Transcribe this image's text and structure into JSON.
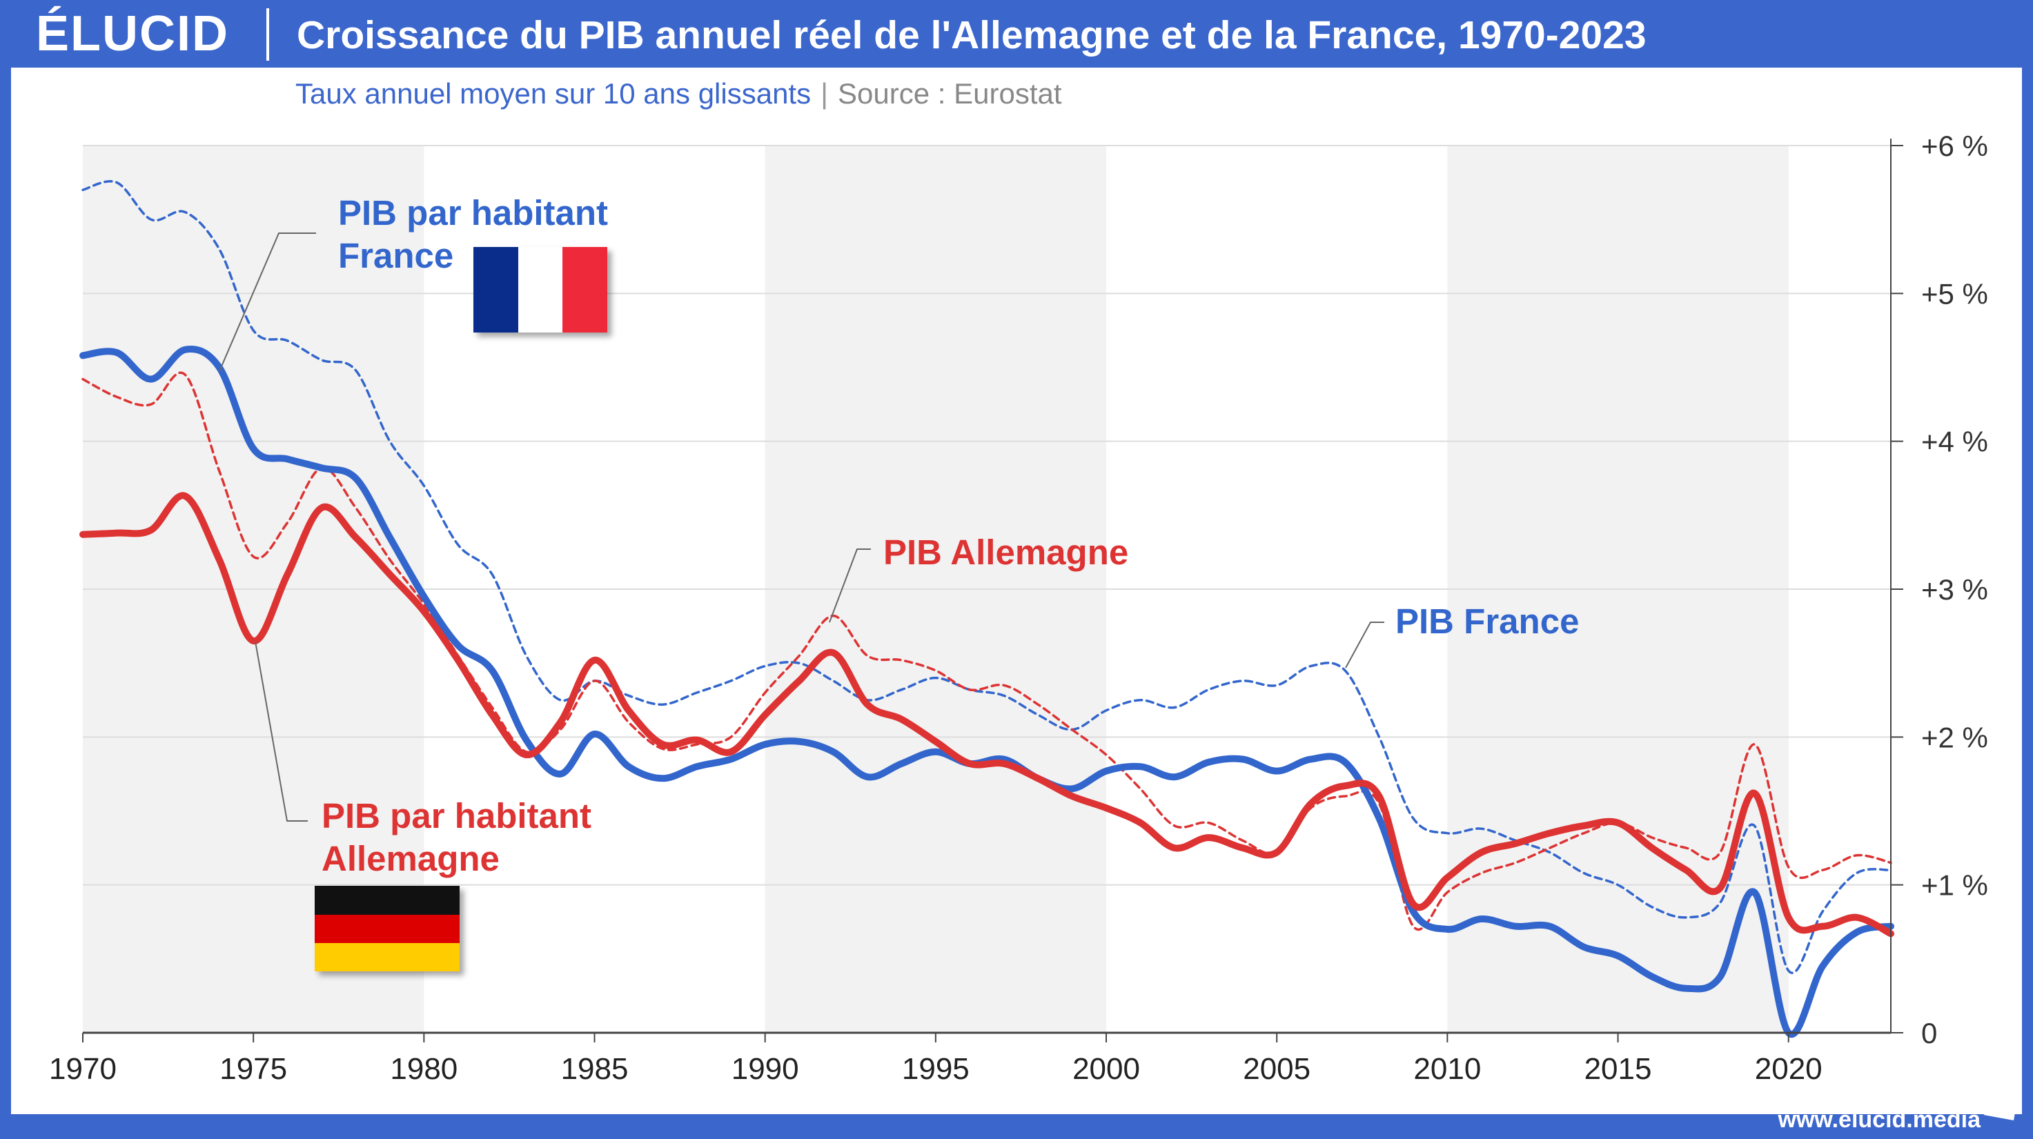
{
  "header": {
    "logo": "ÉLUCID",
    "title": "Croissance du PIB annuel réel de l'Allemagne et de la France, 1970-2023"
  },
  "subtitle": {
    "text": "Taux annuel moyen sur 10 ans glissants",
    "separator": "|",
    "source": "Source : Eurostat"
  },
  "footer": {
    "url": "www.elucid.media"
  },
  "colors": {
    "france": "#3366cc",
    "allemagne": "#dd3333",
    "brand": "#3b66cc",
    "shade": "#f2f2f2"
  },
  "labels": {
    "pib_hab_fr_line1": "PIB par habitant",
    "pib_hab_fr_line2": "France",
    "pib_de": "PIB Allemagne",
    "pib_fr": "PIB France",
    "pib_hab_de_line1": "PIB par habitant",
    "pib_hab_de_line2": "Allemagne"
  },
  "flags": [
    "france-flag",
    "germany-flag"
  ],
  "chart_data": {
    "type": "line",
    "xlim": [
      1970,
      2023
    ],
    "ylim": [
      0,
      6
    ],
    "x_ticks": [
      1970,
      1975,
      1980,
      1985,
      1990,
      1995,
      2000,
      2005,
      2010,
      2015,
      2020
    ],
    "y_ticks": [
      {
        "value": 6,
        "label": "+6 %"
      },
      {
        "value": 5,
        "label": "+5 %"
      },
      {
        "value": 4,
        "label": "+4 %"
      },
      {
        "value": 3,
        "label": "+3 %"
      },
      {
        "value": 2,
        "label": "+2 %"
      },
      {
        "value": 1,
        "label": "+1 %"
      },
      {
        "value": 0,
        "label": "0"
      }
    ],
    "y_axis_side": "right",
    "shaded_bands": [
      [
        1970,
        1980
      ],
      [
        1990,
        2000
      ],
      [
        2010,
        2020
      ]
    ],
    "series": [
      {
        "name": "PIB par habitant France",
        "key": "france",
        "style": "solid",
        "x": [
          1970,
          1971,
          1972,
          1973,
          1974,
          1975,
          1976,
          1977,
          1978,
          1979,
          1980,
          1981,
          1982,
          1983,
          1984,
          1985,
          1986,
          1987,
          1988,
          1989,
          1990,
          1991,
          1992,
          1993,
          1994,
          1995,
          1996,
          1997,
          1998,
          1999,
          2000,
          2001,
          2002,
          2003,
          2004,
          2005,
          2006,
          2007,
          2008,
          2009,
          2010,
          2011,
          2012,
          2013,
          2014,
          2015,
          2016,
          2017,
          2018,
          2019,
          2020,
          2021,
          2022,
          2023
        ],
        "y": [
          4.58,
          4.6,
          4.42,
          4.62,
          4.5,
          3.95,
          3.88,
          3.82,
          3.75,
          3.35,
          2.95,
          2.62,
          2.45,
          1.98,
          1.75,
          2.02,
          1.8,
          1.72,
          1.8,
          1.85,
          1.95,
          1.97,
          1.9,
          1.73,
          1.82,
          1.9,
          1.82,
          1.85,
          1.72,
          1.65,
          1.77,
          1.8,
          1.73,
          1.83,
          1.85,
          1.77,
          1.85,
          1.83,
          1.45,
          0.82,
          0.7,
          0.77,
          0.72,
          0.72,
          0.58,
          0.52,
          0.38,
          0.3,
          0.38,
          0.95,
          0.0,
          0.45,
          0.68,
          0.72
        ]
      },
      {
        "name": "PIB par habitant Allemagne",
        "key": "allemagne",
        "style": "solid",
        "x": [
          1970,
          1971,
          1972,
          1973,
          1974,
          1975,
          1976,
          1977,
          1978,
          1979,
          1980,
          1981,
          1982,
          1983,
          1984,
          1985,
          1986,
          1987,
          1988,
          1989,
          1990,
          1991,
          1992,
          1993,
          1994,
          1995,
          1996,
          1997,
          1998,
          1999,
          2000,
          2001,
          2002,
          2003,
          2004,
          2005,
          2006,
          2007,
          2008,
          2009,
          2010,
          2011,
          2012,
          2013,
          2014,
          2015,
          2016,
          2017,
          2018,
          2019,
          2020,
          2021,
          2022,
          2023
        ],
        "y": [
          3.37,
          3.38,
          3.4,
          3.63,
          3.2,
          2.65,
          3.1,
          3.55,
          3.35,
          3.1,
          2.85,
          2.52,
          2.15,
          1.88,
          2.1,
          2.52,
          2.18,
          1.95,
          1.98,
          1.9,
          2.15,
          2.38,
          2.57,
          2.22,
          2.12,
          1.97,
          1.82,
          1.82,
          1.72,
          1.6,
          1.52,
          1.42,
          1.25,
          1.32,
          1.25,
          1.22,
          1.55,
          1.67,
          1.6,
          0.87,
          1.05,
          1.22,
          1.28,
          1.35,
          1.4,
          1.42,
          1.25,
          1.1,
          0.98,
          1.62,
          0.78,
          0.72,
          0.78,
          0.67
        ]
      },
      {
        "name": "PIB France",
        "key": "france",
        "style": "dashed",
        "x": [
          1970,
          1971,
          1972,
          1973,
          1974,
          1975,
          1976,
          1977,
          1978,
          1979,
          1980,
          1981,
          1982,
          1983,
          1984,
          1985,
          1986,
          1987,
          1988,
          1989,
          1990,
          1991,
          1992,
          1993,
          1994,
          1995,
          1996,
          1997,
          1998,
          1999,
          2000,
          2001,
          2002,
          2003,
          2004,
          2005,
          2006,
          2007,
          2008,
          2009,
          2010,
          2011,
          2012,
          2013,
          2014,
          2015,
          2016,
          2017,
          2018,
          2019,
          2020,
          2021,
          2022,
          2023
        ],
        "y": [
          5.7,
          5.75,
          5.5,
          5.55,
          5.3,
          4.75,
          4.68,
          4.55,
          4.48,
          4.0,
          3.7,
          3.3,
          3.1,
          2.55,
          2.25,
          2.38,
          2.28,
          2.22,
          2.3,
          2.38,
          2.48,
          2.5,
          2.38,
          2.25,
          2.32,
          2.4,
          2.32,
          2.28,
          2.15,
          2.05,
          2.18,
          2.25,
          2.2,
          2.32,
          2.38,
          2.35,
          2.48,
          2.45,
          2.0,
          1.45,
          1.35,
          1.38,
          1.3,
          1.22,
          1.08,
          1.0,
          0.85,
          0.78,
          0.88,
          1.4,
          0.42,
          0.82,
          1.08,
          1.1
        ]
      },
      {
        "name": "PIB Allemagne",
        "key": "allemagne",
        "style": "dashed",
        "x": [
          1970,
          1971,
          1972,
          1973,
          1974,
          1975,
          1976,
          1977,
          1978,
          1979,
          1980,
          1981,
          1982,
          1983,
          1984,
          1985,
          1986,
          1987,
          1988,
          1989,
          1990,
          1991,
          1992,
          1993,
          1994,
          1995,
          1996,
          1997,
          1998,
          1999,
          2000,
          2001,
          2002,
          2003,
          2004,
          2005,
          2006,
          2007,
          2008,
          2009,
          2010,
          2011,
          2012,
          2013,
          2014,
          2015,
          2016,
          2017,
          2018,
          2019,
          2020,
          2021,
          2022,
          2023
        ],
        "y": [
          4.42,
          4.3,
          4.25,
          4.45,
          3.8,
          3.22,
          3.45,
          3.82,
          3.55,
          3.2,
          2.9,
          2.55,
          2.2,
          1.9,
          2.05,
          2.38,
          2.1,
          1.92,
          1.95,
          2.0,
          2.3,
          2.55,
          2.82,
          2.55,
          2.52,
          2.45,
          2.32,
          2.35,
          2.22,
          2.05,
          1.88,
          1.65,
          1.4,
          1.42,
          1.3,
          1.22,
          1.52,
          1.6,
          1.55,
          0.72,
          0.95,
          1.08,
          1.15,
          1.25,
          1.35,
          1.42,
          1.32,
          1.25,
          1.22,
          1.95,
          1.12,
          1.1,
          1.2,
          1.15
        ]
      }
    ]
  }
}
